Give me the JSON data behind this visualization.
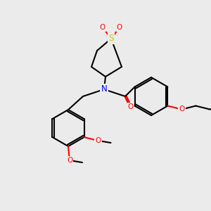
{
  "background_color": "#ebebeb",
  "bond_color": "#000000",
  "bond_width": 1.5,
  "atom_colors": {
    "N": "#0000ff",
    "O": "#ff0000",
    "S": "#cccc00",
    "C": "#000000"
  },
  "font_size": 7.5,
  "figsize": [
    3.0,
    3.0
  ],
  "dpi": 100
}
